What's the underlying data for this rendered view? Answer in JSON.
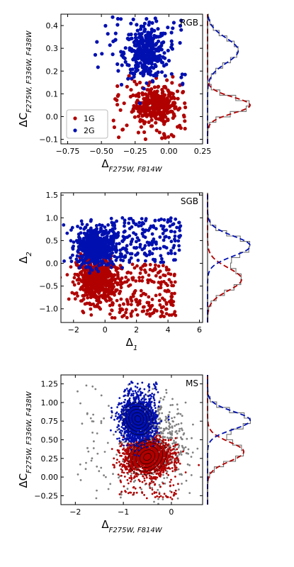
{
  "colors": {
    "g1": "#b00000",
    "g2": "#0010b0",
    "other": "#808080",
    "hist": "#707070",
    "axis": "#000000"
  },
  "chart_data": [
    {
      "id": "rgb",
      "type": "scatter",
      "title": "RGB",
      "xlabel_main": "Δ",
      "xlabel_sub": "F275W, F814W",
      "ylabel_main": "ΔC",
      "ylabel_sub": "F275W, F336W, F438W",
      "xlim": [
        -0.8,
        0.25
      ],
      "ylim": [
        -0.12,
        0.45
      ],
      "xticks": [
        -0.75,
        -0.5,
        -0.25,
        0.0,
        0.25
      ],
      "xtick_labels": [
        "−0.75",
        "−0.50",
        "−0.25",
        "0.00",
        "0.25"
      ],
      "yticks": [
        -0.1,
        0.0,
        0.1,
        0.2,
        0.3,
        0.4
      ],
      "ytick_labels": [
        "−0.1",
        "0.0",
        "0.1",
        "0.2",
        "0.3",
        "0.4"
      ],
      "legend": {
        "placement": "lower-left",
        "entries": [
          "1G",
          "2G"
        ]
      },
      "series": [
        {
          "name": "1G",
          "color": "g1",
          "cluster": {
            "x": -0.1,
            "sx": 0.08,
            "y": 0.05,
            "sy": 0.035,
            "n": 320
          },
          "spread": {
            "x": [
              -0.45,
              0.12
            ],
            "y": [
              -0.1,
              0.18
            ],
            "n": 70
          }
        },
        {
          "name": "2G",
          "color": "g2",
          "cluster": {
            "x": -0.17,
            "sx": 0.08,
            "y": 0.28,
            "sy": 0.055,
            "n": 320
          },
          "spread": {
            "x": [
              -0.55,
              0.12
            ],
            "y": [
              0.14,
              0.44
            ],
            "n": 60
          }
        }
      ],
      "side_hist": {
        "ylim": [
          -0.12,
          0.45
        ],
        "gauss": [
          {
            "name": "1G",
            "mu": 0.05,
            "sigma": 0.035,
            "amp": 1.0
          },
          {
            "name": "2G",
            "mu": 0.29,
            "sigma": 0.055,
            "amp": 0.72
          }
        ]
      }
    },
    {
      "id": "sgb",
      "type": "scatter",
      "title": "SGB",
      "xlabel_main": "Δ",
      "xlabel_sub": "1",
      "ylabel_main": "Δ",
      "ylabel_sub": "2",
      "xlim": [
        -2.8,
        6.2
      ],
      "ylim": [
        -1.3,
        1.55
      ],
      "xticks": [
        -2,
        0,
        2,
        4,
        6
      ],
      "xtick_labels": [
        "−2",
        "0",
        "2",
        "4",
        "6"
      ],
      "yticks": [
        -1.0,
        -0.5,
        0.0,
        0.5,
        1.0,
        1.5
      ],
      "ytick_labels": [
        "−1.0",
        "−0.5",
        "0.0",
        "0.5",
        "1.0",
        "1.5"
      ],
      "series": [
        {
          "name": "1G",
          "color": "g1",
          "cluster": {
            "x": -0.6,
            "sx": 0.6,
            "y": -0.35,
            "sy": 0.25,
            "n": 550
          },
          "spread": {
            "x": [
              0.3,
              4.5
            ],
            "y": [
              -1.2,
              -0.02
            ],
            "n": 220
          }
        },
        {
          "name": "2G",
          "color": "g2",
          "cluster": {
            "x": -0.6,
            "sx": 0.6,
            "y": 0.38,
            "sy": 0.22,
            "n": 550
          },
          "spread": {
            "x": [
              0.3,
              4.8
            ],
            "y": [
              0.02,
              1.0
            ],
            "n": 200
          }
        }
      ],
      "side_hist": {
        "ylim": [
          -1.3,
          1.55
        ],
        "gauss": [
          {
            "name": "1G",
            "mu": -0.35,
            "sigma": 0.25,
            "amp": 0.8
          },
          {
            "name": "2G",
            "mu": 0.38,
            "sigma": 0.22,
            "amp": 1.0
          }
        ]
      }
    },
    {
      "id": "ms",
      "type": "scatter",
      "title": "MS",
      "xlabel_main": "Δ",
      "xlabel_sub": "F275W, F814W",
      "ylabel_main": "ΔC",
      "ylabel_sub": "F275W, F336W, F438W",
      "xlim": [
        -2.3,
        0.65
      ],
      "ylim": [
        -0.37,
        1.37
      ],
      "xticks": [
        -2,
        -1,
        0
      ],
      "xtick_labels": [
        "−2",
        "−1",
        "0"
      ],
      "yticks": [
        -0.25,
        0.0,
        0.25,
        0.5,
        0.75,
        1.0,
        1.25
      ],
      "ytick_labels": [
        "−0.25",
        "0.00",
        "0.25",
        "0.50",
        "0.75",
        "1.00",
        "1.25"
      ],
      "series": [
        {
          "name": "other",
          "color": "other",
          "cluster": {
            "x": -0.3,
            "sx": 0.3,
            "y": 0.5,
            "sy": 0.28,
            "n": 450
          },
          "spread": {
            "x": [
              -2.0,
              0.4
            ],
            "y": [
              -0.3,
              1.25
            ],
            "n": 120
          }
        },
        {
          "name": "1G",
          "color": "g1",
          "cluster": {
            "x": -0.5,
            "sx": 0.25,
            "y": 0.27,
            "sy": 0.12,
            "n": 1400
          },
          "spread": {
            "x": [
              -1.1,
              0.1
            ],
            "y": [
              -0.3,
              0.45
            ],
            "n": 150
          }
        },
        {
          "name": "2G",
          "color": "g2",
          "cluster": {
            "x": -0.7,
            "sx": 0.18,
            "y": 0.76,
            "sy": 0.14,
            "n": 1400
          },
          "spread": {
            "x": [
              -1.0,
              -0.25
            ],
            "y": [
              0.5,
              1.3
            ],
            "n": 150
          }
        }
      ],
      "side_hist": {
        "ylim": [
          -0.37,
          1.37
        ],
        "gauss": [
          {
            "name": "1G",
            "mu": 0.34,
            "sigma": 0.13,
            "amp": 0.85
          },
          {
            "name": "2G",
            "mu": 0.76,
            "sigma": 0.12,
            "amp": 1.0
          }
        ]
      }
    }
  ]
}
